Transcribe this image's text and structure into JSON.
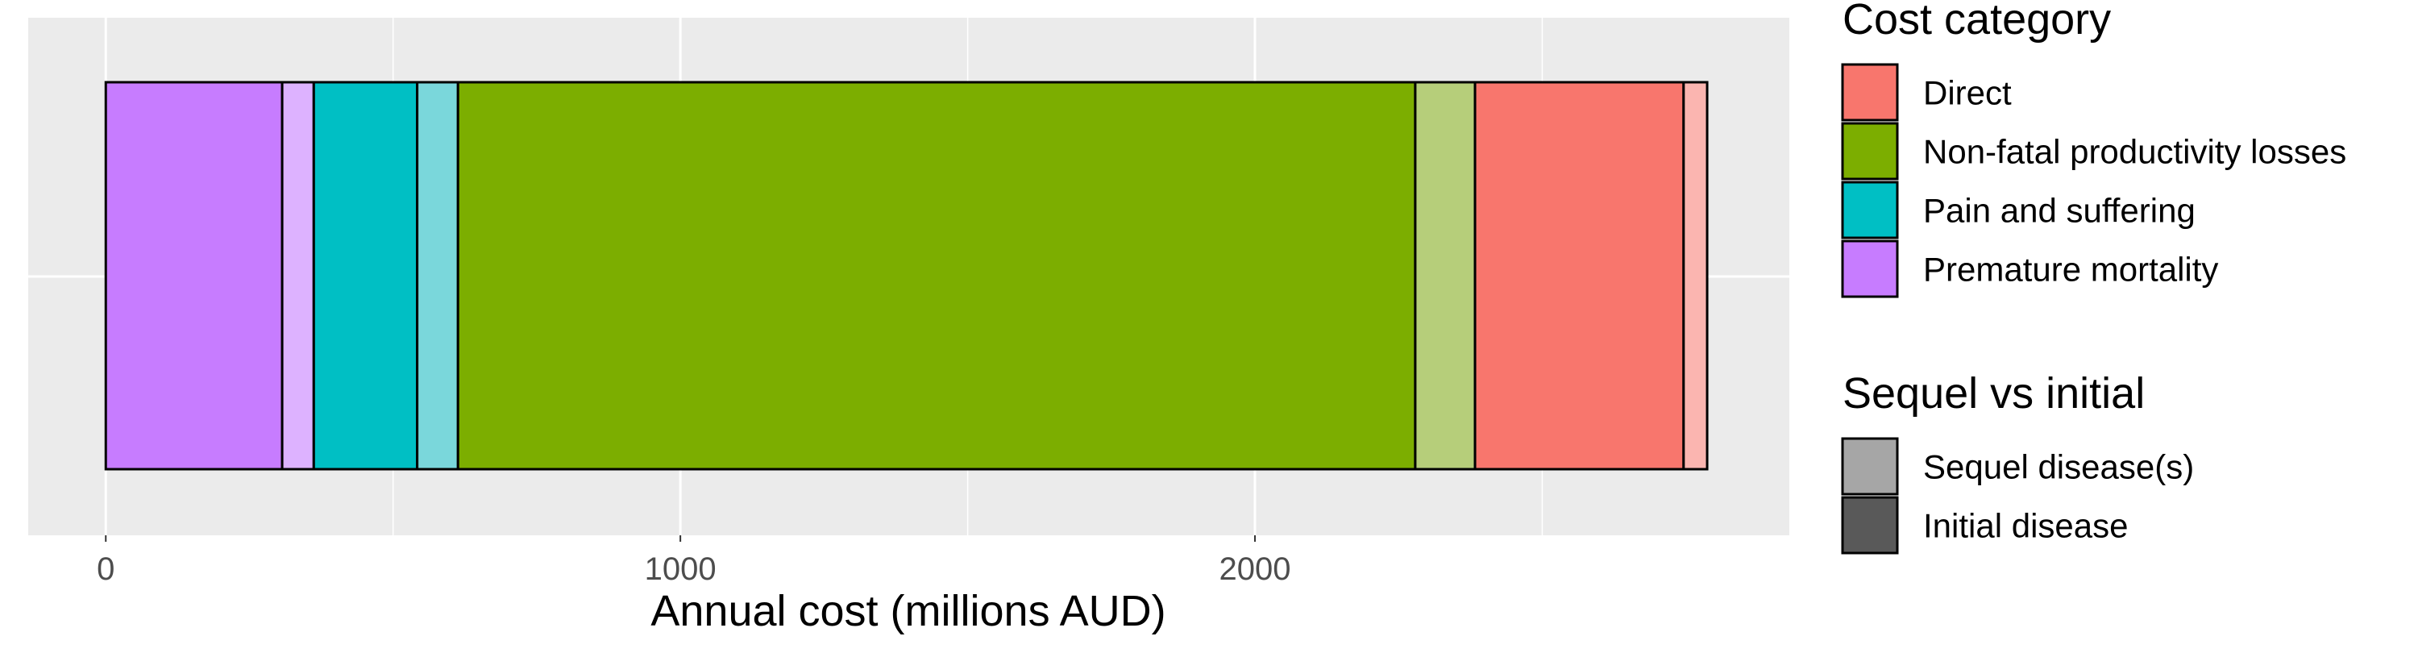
{
  "chart_data": {
    "type": "bar",
    "orientation": "horizontal",
    "stacked": true,
    "title": "",
    "xlabel": "Annual cost (millions AUD)",
    "ylabel": "",
    "xlim": [
      -135,
      2930
    ],
    "x_ticks": [
      0,
      1000,
      2000
    ],
    "grid": true,
    "legend_position": "right",
    "segments": [
      {
        "category": "Premature mortality",
        "part": "Initial disease",
        "value": 307
      },
      {
        "category": "Premature mortality",
        "part": "Sequel disease(s)",
        "value": 55
      },
      {
        "category": "Pain and suffering",
        "part": "Initial disease",
        "value": 180
      },
      {
        "category": "Pain and suffering",
        "part": "Sequel disease(s)",
        "value": 71
      },
      {
        "category": "Non-fatal productivity losses",
        "part": "Initial disease",
        "value": 1666
      },
      {
        "category": "Non-fatal productivity losses",
        "part": "Sequel disease(s)",
        "value": 104
      },
      {
        "category": "Direct",
        "part": "Initial disease",
        "value": 363
      },
      {
        "category": "Direct",
        "part": "Sequel disease(s)",
        "value": 41
      }
    ],
    "colors": {
      "Direct": "#F8766D",
      "Non-fatal productivity losses": "#7CAE00",
      "Pain and suffering": "#00BFC4",
      "Premature mortality": "#C77CFF"
    },
    "sequel_colors": {
      "Direct": "#FBB5B0",
      "Non-fatal productivity losses": "#B6CE7A",
      "Pain and suffering": "#7AD7DB",
      "Premature mortality": "#DDB2FF"
    },
    "legends": [
      {
        "title": "Cost category",
        "items": [
          {
            "label": "Direct",
            "color": "#F8766D"
          },
          {
            "label": "Non-fatal productivity losses",
            "color": "#7CAE00"
          },
          {
            "label": "Pain and suffering",
            "color": "#00BFC4"
          },
          {
            "label": "Premature mortality",
            "color": "#C77CFF"
          }
        ]
      },
      {
        "title": "Sequel vs initial",
        "items": [
          {
            "label": "Sequel disease(s)",
            "color": "#A6A6A6"
          },
          {
            "label": "Initial disease",
            "color": "#595959"
          }
        ]
      }
    ]
  }
}
